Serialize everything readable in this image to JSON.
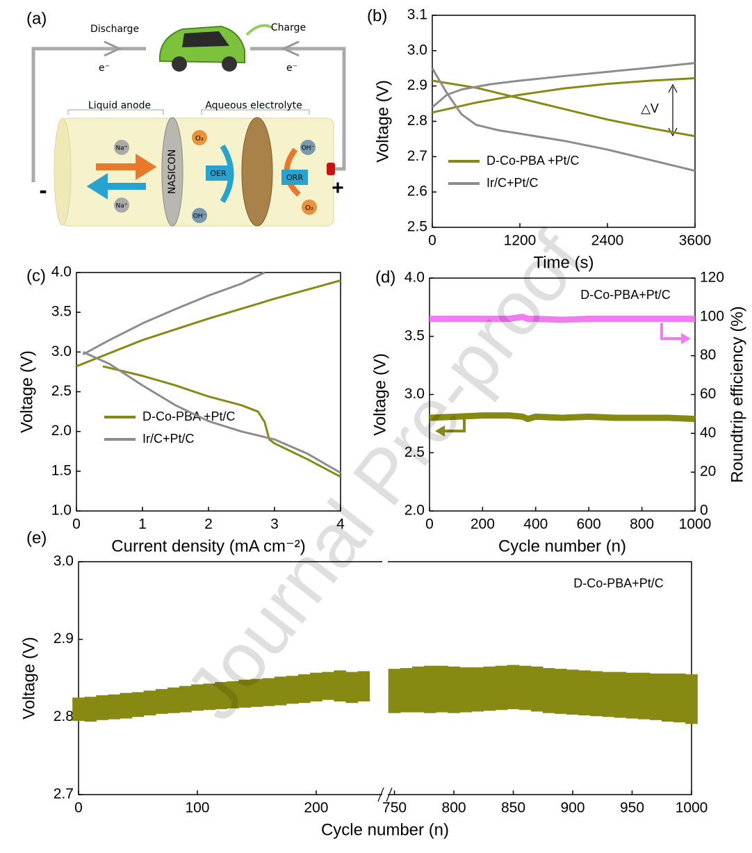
{
  "watermark": "Journal Pre-proof",
  "diagram": {
    "label": "(a)",
    "discharge": "Discharge",
    "charge": "Charge",
    "electron_left": "e⁻",
    "electron_right": "e⁻",
    "liquid_anode": "Liquid anode",
    "aqueous_electrolyte": "Aqueous electrolyte",
    "sodium_top": "Na⁺",
    "sodium_bottom": "Na⁺",
    "separator": "NASICON",
    "oxygen_left": "O₂",
    "oer": "OER",
    "hydroxide_left": "OH⁻",
    "hydroxide_right": "OH⁻",
    "orr": "ORR",
    "oxygen_right": "O₂",
    "negative": "-",
    "positive": "+"
  },
  "chart_data": [
    {
      "type": "line",
      "label": "(b)",
      "xlabel": "Time (s)",
      "ylabel": "Voltage (V)",
      "annotation": "△V",
      "legend": "lower left",
      "xlim": [
        0,
        3600
      ],
      "xticks": [
        0,
        1200,
        2400,
        3600
      ],
      "ylim": [
        2.5,
        3.1
      ],
      "yticks": [
        2.5,
        2.6,
        2.7,
        2.8,
        2.9,
        {
          "value": 3,
          "label": "3.0"
        },
        3.1
      ],
      "series": [
        {
          "name": "D-Co-PBA +Pt/C",
          "color": "#878a12",
          "x": [
            0,
            600,
            1200,
            1800,
            2400,
            3000,
            3600,
            null,
            0,
            600,
            1200,
            1800,
            2400,
            3000,
            3600
          ],
          "values": [
            2.825,
            2.853,
            2.875,
            2.893,
            2.906,
            2.915,
            2.922,
            null,
            2.915,
            2.895,
            2.865,
            2.835,
            2.805,
            2.78,
            2.758
          ]
        },
        {
          "name": "Ir/C+Pt/C",
          "color": "#8c8c8c",
          "x": [
            0,
            200,
            400,
            800,
            1200,
            1800,
            2400,
            3000,
            3600,
            null,
            0,
            200,
            400,
            600,
            900,
            1200,
            1800,
            2400,
            3000,
            3600
          ],
          "values": [
            2.84,
            2.875,
            2.89,
            2.905,
            2.915,
            2.928,
            2.94,
            2.952,
            2.965,
            null,
            2.95,
            2.88,
            2.82,
            2.79,
            2.775,
            2.765,
            2.745,
            2.72,
            2.69,
            2.66
          ]
        }
      ]
    },
    {
      "type": "line",
      "label": "(c)",
      "xlabel": "Current density (mA cm⁻²)",
      "ylabel": "Voltage (V)",
      "legend": "lower left",
      "xlim": [
        0,
        4
      ],
      "xticks": [
        0,
        1,
        2,
        3,
        4
      ],
      "ylim": [
        1,
        4
      ],
      "yticks": [
        {
          "value": 1,
          "label": "1.0"
        },
        1.5,
        {
          "value": 2,
          "label": "2.0"
        },
        2.5,
        {
          "value": 3,
          "label": "3.0"
        },
        3.5,
        {
          "value": 4,
          "label": "4.0"
        }
      ],
      "series": [
        {
          "name": "D-Co-PBA +Pt/C",
          "color": "#878a12",
          "x": [
            0,
            1,
            2,
            3,
            4,
            null,
            0.4,
            1,
            1.5,
            2,
            2.5,
            2.75,
            2.85,
            2.92,
            3,
            3.5,
            4
          ],
          "values": [
            2.82,
            3.15,
            3.42,
            3.67,
            3.9,
            null,
            2.82,
            2.7,
            2.58,
            2.44,
            2.33,
            2.25,
            2.12,
            1.9,
            1.85,
            1.65,
            1.43
          ]
        },
        {
          "name": "Ir/C+Pt/C",
          "color": "#8c8c8c",
          "x": [
            0.1,
            0.5,
            1,
            1.5,
            2,
            2.5,
            2.85,
            null,
            0.1,
            0.5,
            1,
            1.5,
            2,
            2.5,
            3,
            3.5,
            4
          ],
          "values": [
            2.97,
            3.15,
            3.36,
            3.54,
            3.71,
            3.86,
            4.0,
            null,
            3.0,
            2.85,
            2.58,
            2.33,
            2.13,
            2.0,
            1.9,
            1.72,
            1.48
          ]
        }
      ]
    },
    {
      "type": "line",
      "label": "(d)",
      "xlabel": "Cycle number (n)",
      "ylabel": "Voltage (V)",
      "y2label": "Roundtrip efficiency (%)",
      "annotation": "D-Co-PBA+Pt/C",
      "xlim": [
        0,
        1000
      ],
      "xticks": [
        0,
        200,
        400,
        600,
        800,
        1000
      ],
      "ylim": [
        2,
        4
      ],
      "yticks": [
        {
          "value": 2,
          "label": "2.0"
        },
        2.5,
        {
          "value": 3,
          "label": "3.0"
        },
        3.5,
        {
          "value": 4,
          "label": "4.0"
        }
      ],
      "y2lim": [
        0,
        120
      ],
      "y2ticks": [
        0,
        20,
        40,
        60,
        80,
        100,
        120
      ],
      "series": [
        {
          "color": "#878a12",
          "x": [
            0,
            100,
            200,
            300,
            350,
            370,
            400,
            500,
            600,
            700,
            800,
            900,
            1000
          ],
          "values": [
            2.8,
            2.81,
            2.82,
            2.82,
            2.81,
            2.79,
            2.81,
            2.8,
            2.81,
            2.8,
            2.8,
            2.8,
            2.79
          ]
        },
        {
          "color": "#f07cf0",
          "axis": "y2",
          "x": [
            0,
            100,
            200,
            300,
            350,
            370,
            400,
            500,
            600,
            700,
            800,
            900,
            1000
          ],
          "values": [
            99,
            99,
            99,
            99,
            100,
            99,
            99,
            98.5,
            99,
            99,
            99,
            99,
            99
          ]
        }
      ]
    },
    {
      "type": "range",
      "label": "(e)",
      "xlabel": "Cycle number (n)",
      "ylabel": "Voltage (V)",
      "annotation": "D-Co-PBA+Pt/C",
      "color": "#878a12",
      "xlim": [
        0,
        1000
      ],
      "xbreak": [
        255,
        745
      ],
      "xticks": [
        0,
        100,
        200,
        750,
        800,
        850,
        900,
        950,
        1000
      ],
      "ylim": [
        2.7,
        3.0
      ],
      "yticks": [
        2.7,
        2.8,
        2.9,
        {
          "value": 3,
          "label": "3.0"
        }
      ],
      "x": [
        0,
        10,
        20,
        30,
        40,
        50,
        60,
        70,
        80,
        90,
        100,
        110,
        120,
        130,
        140,
        150,
        160,
        170,
        180,
        190,
        200,
        210,
        220,
        230,
        240,
        750,
        760,
        770,
        780,
        790,
        800,
        810,
        820,
        830,
        840,
        850,
        860,
        870,
        880,
        890,
        900,
        910,
        920,
        930,
        940,
        950,
        960,
        970,
        980,
        990,
        1000
      ],
      "low": [
        2.795,
        2.794,
        2.796,
        2.797,
        2.798,
        2.8,
        2.802,
        2.804,
        2.805,
        2.806,
        2.808,
        2.809,
        2.81,
        2.811,
        2.812,
        2.813,
        2.814,
        2.815,
        2.817,
        2.818,
        2.82,
        2.822,
        2.82,
        2.818,
        2.82,
        2.805,
        2.806,
        2.806,
        2.805,
        2.806,
        2.805,
        2.806,
        2.807,
        2.808,
        2.809,
        2.81,
        2.809,
        2.807,
        2.805,
        2.804,
        2.803,
        2.802,
        2.801,
        2.8,
        2.799,
        2.798,
        2.797,
        2.796,
        2.794,
        2.793,
        2.791
      ],
      "high": [
        2.825,
        2.826,
        2.828,
        2.829,
        2.831,
        2.832,
        2.834,
        2.836,
        2.838,
        2.84,
        2.842,
        2.843,
        2.845,
        2.846,
        2.848,
        2.849,
        2.85,
        2.852,
        2.853,
        2.855,
        2.857,
        2.858,
        2.86,
        2.858,
        2.859,
        2.862,
        2.863,
        2.865,
        2.866,
        2.866,
        2.865,
        2.864,
        2.864,
        2.865,
        2.866,
        2.867,
        2.866,
        2.865,
        2.863,
        2.862,
        2.861,
        2.86,
        2.859,
        2.858,
        2.858,
        2.857,
        2.857,
        2.856,
        2.856,
        2.856,
        2.855
      ]
    }
  ]
}
